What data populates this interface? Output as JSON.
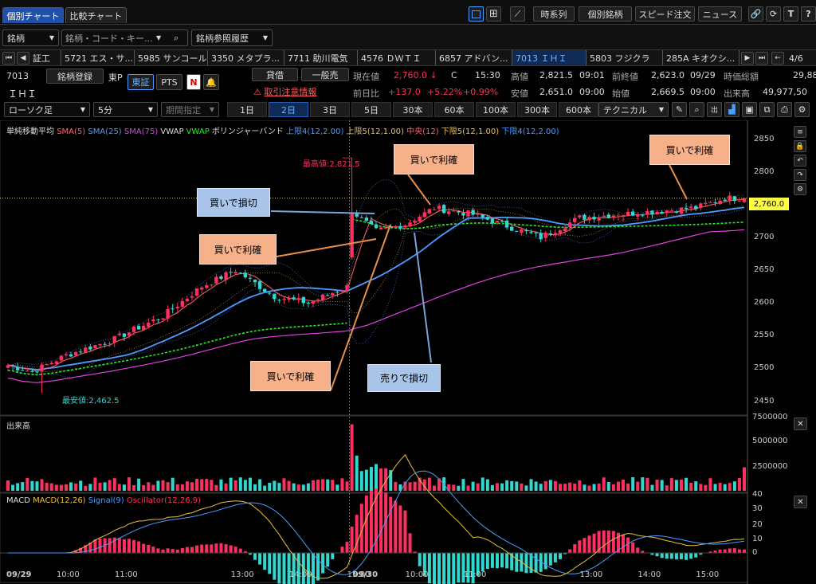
{
  "tabs": [
    "個別チャート",
    "比較チャート"
  ],
  "top_buttons": [
    "時系列",
    "個別銘柄",
    "スピード注文",
    "ニュース"
  ],
  "search": {
    "dropdown": "銘柄",
    "placeholder": "銘柄・コード・キー...",
    "history": "銘柄参照履歴"
  },
  "ticker_strip": {
    "items": [
      "証工",
      "5721 エス・サ...",
      "5985 サンコール",
      "3350 メタプラ...",
      "7711 助川電気",
      "4576 ＤＷＴＩ",
      "6857 アドバン...",
      "7013 ＩＨＩ",
      "5803 フジクラ",
      "285A キオクシ..."
    ],
    "page": "4/6"
  },
  "stock": {
    "code": "7013",
    "name": "ＩＨＩ",
    "register": "銘柄登録",
    "market_short": "東P",
    "exchange": "東証",
    "pts": "PTS",
    "loan": "貸借",
    "general": "一般売",
    "warning": "取引注意情報",
    "current_label": "現在値",
    "current": "2,760.0",
    "arrow": "↓",
    "c": "C",
    "time": "15:30",
    "high_label": "高値",
    "high": "2,821.5",
    "high_time": "09:01",
    "low_label": "安値",
    "low": "2,651.0",
    "low_time": "09:00",
    "prev_label": "前終値",
    "prev": "2,623.0",
    "prev_date": "09/29",
    "open_label": "始値",
    "open": "2,669.5",
    "open_time": "09:00",
    "diff_label": "前日比",
    "diff": "+137.0",
    "pct": "+5.22%",
    "pct2": "+0.99%",
    "mcap_label": "時価総額",
    "mcap": "29,88",
    "vol_label": "出来高",
    "vol": "49,977,50"
  },
  "toolbar": {
    "chart_type": "ローソク足",
    "interval": "5分",
    "period_select": "期間指定",
    "periods": [
      "1日",
      "2日",
      "3日",
      "5日",
      "30本",
      "60本",
      "100本",
      "300本",
      "600本"
    ],
    "active_period": "2日",
    "technical": "テクニカル"
  },
  "legend": {
    "a": "単純移動平均",
    "sma5": "SMA(5)",
    "sma25": "SMA(25)",
    "sma75": "SMA(75)",
    "vwap1": "VWAP",
    "vwap2": "VWAP",
    "bb": "ボリンジャーバンド",
    "u4": "上限4(12,2.00)",
    "u5": "上限5(12,1.00)",
    "mid": "中央(12)",
    "l5": "下限5(12,1.00)",
    "l4": "下限4(12,2.00)"
  },
  "annotations": {
    "max": "最高値:2,821.5",
    "min": "最安値:2,462.5",
    "a1": "買いで損切",
    "a2": "買いで利確",
    "a3": "買いで利確",
    "a4": "買いで利確",
    "a5": "売りで損切",
    "a6": "買いで利確"
  },
  "price_axis": [
    "2850",
    "2800",
    "2750",
    "2700",
    "2650",
    "2600",
    "2550",
    "2500",
    "2450"
  ],
  "price_tag": "2,760.0",
  "volume": {
    "title": "出来高",
    "axis": [
      "7500000",
      "5000000",
      "2500000"
    ]
  },
  "macd": {
    "title": "MACD",
    "line": "MACD(12,26)",
    "signal": "Signal(9)",
    "osc": "Oscillator(12,26,9)",
    "axis": [
      "40",
      "30",
      "20",
      "10",
      "0"
    ]
  },
  "time_axis": [
    "09/29",
    "10:00",
    "11:00",
    "13:00",
    "14:00",
    "15:00",
    "09/30",
    "10:00",
    "11:00",
    "13:00",
    "14:00",
    "15:00"
  ],
  "chart_data": {
    "type": "candlestick",
    "interval": "5分",
    "days": [
      "09/29",
      "09/30"
    ],
    "close_anchors": [
      [
        0,
        2505
      ],
      [
        5,
        2495
      ],
      [
        12,
        2520
      ],
      [
        22,
        2545
      ],
      [
        32,
        2580
      ],
      [
        40,
        2625
      ],
      [
        47,
        2650
      ],
      [
        55,
        2610
      ],
      [
        62,
        2600
      ],
      [
        70,
        2625
      ],
      [
        71,
        2740
      ],
      [
        76,
        2710
      ],
      [
        82,
        2720
      ],
      [
        88,
        2745
      ],
      [
        96,
        2735
      ],
      [
        104,
        2715
      ],
      [
        110,
        2700
      ],
      [
        118,
        2730
      ],
      [
        126,
        2735
      ],
      [
        134,
        2740
      ],
      [
        142,
        2745
      ],
      [
        148,
        2760
      ],
      [
        152,
        2760
      ]
    ],
    "high": 2821.5,
    "low": 2462.5,
    "last": 2760.0,
    "ylim": [
      2430,
      2880
    ]
  },
  "colors": {
    "up": "#ff3060",
    "down": "#30d8d0",
    "sma5": "#ff6070",
    "sma25": "#4d9cff",
    "sma75": "#e040e0",
    "vwap": "#22ee22",
    "accent": "#4a9cff"
  }
}
